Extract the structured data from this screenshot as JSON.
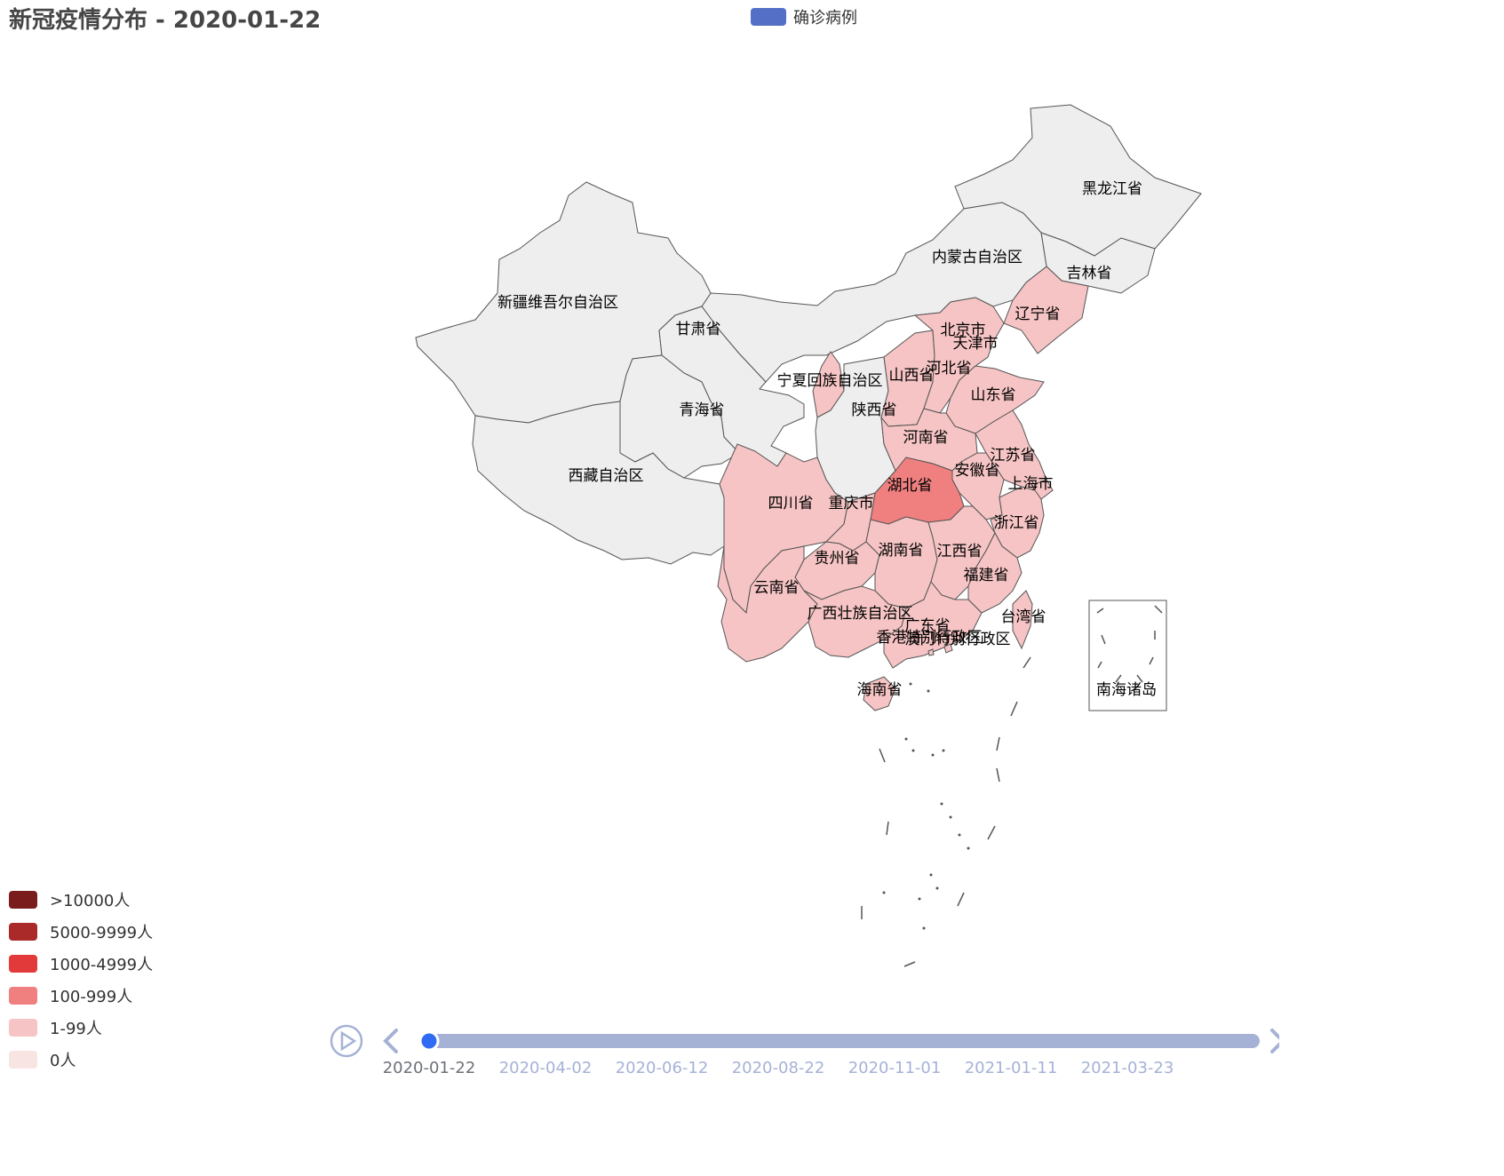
{
  "title": "新冠疫情分布 - 2020-01-22",
  "legend": {
    "label": "确诊病例",
    "color": "#5470c6"
  },
  "visual_map": [
    {
      "label": ">10000人",
      "color": "#7a1c1c"
    },
    {
      "label": "5000-9999人",
      "color": "#aa2a2a"
    },
    {
      "label": "1000-4999人",
      "color": "#e23a3a"
    },
    {
      "label": "100-999人",
      "color": "#f08080"
    },
    {
      "label": "1-99人",
      "color": "#f6c4c4"
    },
    {
      "label": "0人",
      "color": "#f9e4e4"
    }
  ],
  "map": {
    "no_data_color": "#eeeeee",
    "regions": [
      {
        "name": "黑龙江省",
        "level": "none"
      },
      {
        "name": "吉林省",
        "level": "none"
      },
      {
        "name": "辽宁省",
        "level": "1-99"
      },
      {
        "name": "内蒙古自治区",
        "level": "none"
      },
      {
        "name": "新疆维吾尔自治区",
        "level": "none"
      },
      {
        "name": "甘肃省",
        "level": "none"
      },
      {
        "name": "青海省",
        "level": "none"
      },
      {
        "name": "西藏自治区",
        "level": "none"
      },
      {
        "name": "宁夏回族自治区",
        "level": "1-99"
      },
      {
        "name": "陕西省",
        "level": "none"
      },
      {
        "name": "山西省",
        "level": "1-99"
      },
      {
        "name": "北京市",
        "level": "1-99"
      },
      {
        "name": "天津市",
        "level": "1-99"
      },
      {
        "name": "河北省",
        "level": "1-99"
      },
      {
        "name": "山东省",
        "level": "1-99"
      },
      {
        "name": "河南省",
        "level": "1-99"
      },
      {
        "name": "江苏省",
        "level": "1-99"
      },
      {
        "name": "安徽省",
        "level": "1-99"
      },
      {
        "name": "上海市",
        "level": "1-99"
      },
      {
        "name": "湖北省",
        "level": "100-999"
      },
      {
        "name": "四川省",
        "level": "1-99"
      },
      {
        "name": "重庆市",
        "level": "1-99"
      },
      {
        "name": "浙江省",
        "level": "1-99"
      },
      {
        "name": "贵州省",
        "level": "1-99"
      },
      {
        "name": "湖南省",
        "level": "1-99"
      },
      {
        "name": "江西省",
        "level": "1-99"
      },
      {
        "name": "福建省",
        "level": "1-99"
      },
      {
        "name": "云南省",
        "level": "1-99"
      },
      {
        "name": "广西壮族自治区",
        "level": "1-99"
      },
      {
        "name": "广东省",
        "level": "1-99"
      },
      {
        "name": "台湾省",
        "level": "1-99"
      },
      {
        "name": "香港特别行政区",
        "level": "1-99"
      },
      {
        "name": "澳门特别行政区",
        "level": "1-99"
      },
      {
        "name": "海南省",
        "level": "1-99"
      },
      {
        "name": "南海诸岛",
        "level": "none"
      }
    ]
  },
  "timeline": {
    "current": "2020-01-22",
    "progress": 0,
    "labels": [
      "2020-01-22",
      "2020-04-02",
      "2020-06-12",
      "2020-08-22",
      "2020-11-01",
      "2021-01-11",
      "2021-03-23"
    ]
  },
  "icons": {
    "play": "play-icon",
    "prev": "chevron-left-icon",
    "next": "chevron-right-icon"
  }
}
